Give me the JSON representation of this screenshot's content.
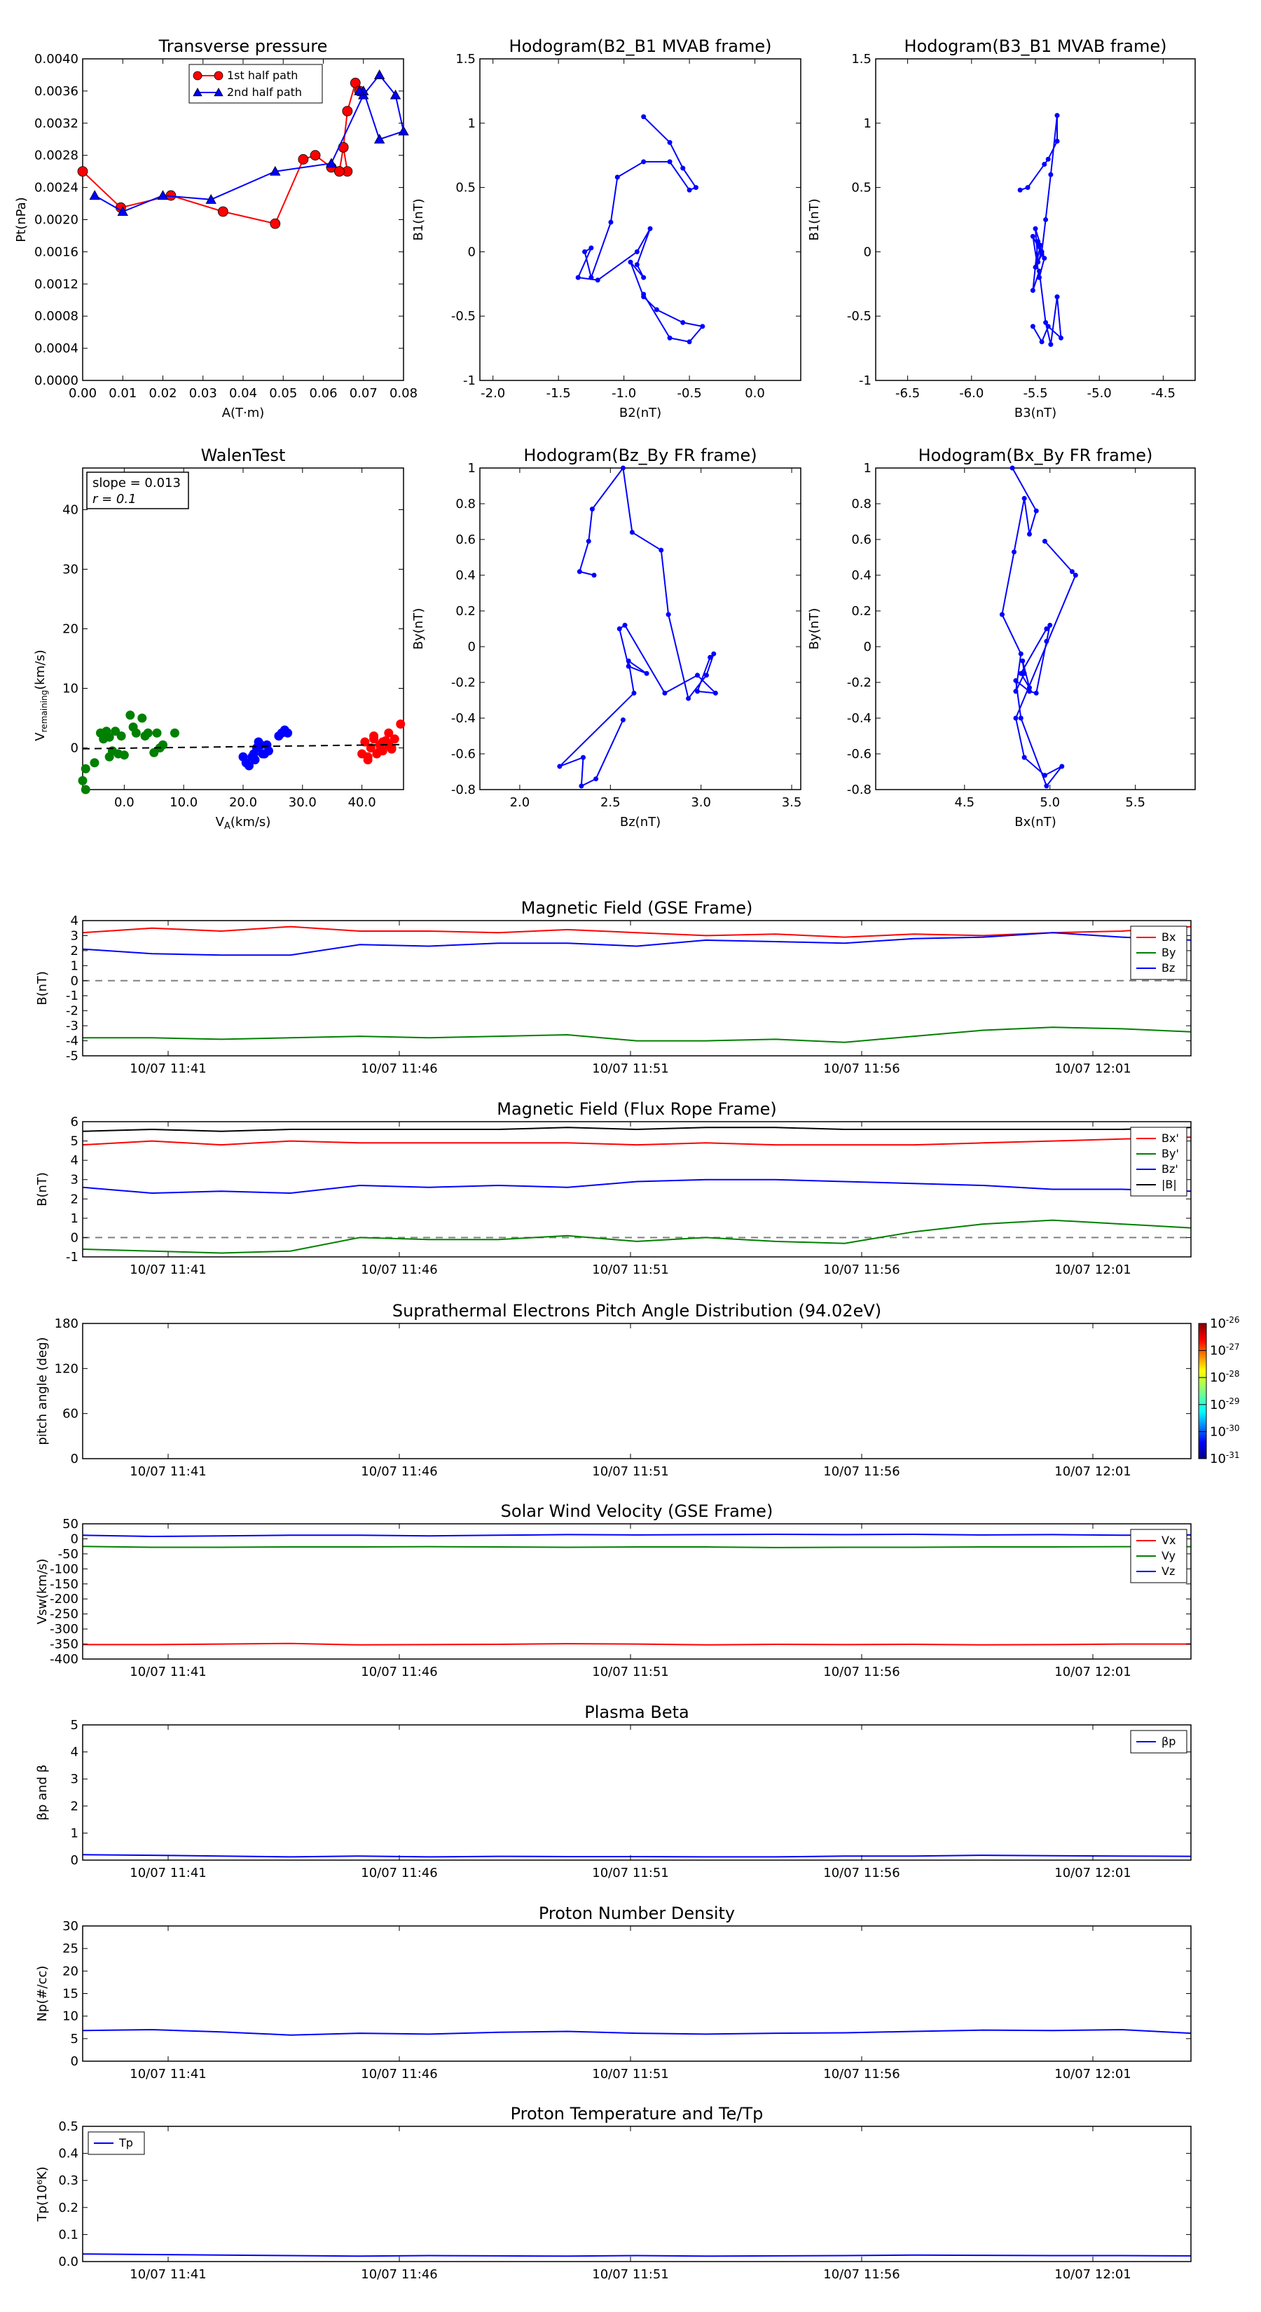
{
  "colors": {
    "red": "#ff0000",
    "green": "#008000",
    "blue": "#0000ff",
    "black": "#000000",
    "grey": "#808080"
  },
  "time_ticks": [
    "10/07 11:41",
    "10/07 11:46",
    "10/07 11:51",
    "10/07 11:56",
    "10/07 12:01"
  ],
  "chart_data": [
    {
      "type": "line",
      "title": "Transverse pressure",
      "xlabel": "A(T·m)",
      "ylabel": "Pt(nPa)",
      "xlim": [
        0,
        0.08
      ],
      "ylim": [
        0,
        0.004
      ],
      "xticks": [
        "0.00",
        "0.01",
        "0.02",
        "0.03",
        "0.04",
        "0.05",
        "0.06",
        "0.07",
        "0.08"
      ],
      "yticks": [
        "0.0000",
        "0.0004",
        "0.0008",
        "0.0012",
        "0.0016",
        "0.0020",
        "0.0024",
        "0.0028",
        "0.0032",
        "0.0036",
        "0.0040"
      ],
      "legend": {
        "position": "top-center",
        "entries": [
          "1st half path",
          "2nd half path"
        ]
      },
      "series": [
        {
          "name": "1st half path",
          "color": "#ff0000",
          "marker": "circle",
          "x": [
            0.0,
            0.0095,
            0.022,
            0.035,
            0.048,
            0.055,
            0.058,
            0.062,
            0.064,
            0.066,
            0.065,
            0.064,
            0.065,
            0.066,
            0.068,
            0.069
          ],
          "y": [
            0.0026,
            0.00215,
            0.0023,
            0.0021,
            0.00195,
            0.00275,
            0.0028,
            0.00265,
            0.0026,
            0.0026,
            0.0029,
            0.0026,
            0.0029,
            0.00335,
            0.0037,
            0.0036
          ]
        },
        {
          "name": "2nd half path",
          "color": "#0000ff",
          "marker": "triangle",
          "x": [
            0.003,
            0.01,
            0.02,
            0.032,
            0.048,
            0.062,
            0.07,
            0.074,
            0.078,
            0.08,
            0.074,
            0.07,
            0.069
          ],
          "y": [
            0.0023,
            0.0021,
            0.0023,
            0.00225,
            0.0026,
            0.0027,
            0.00355,
            0.0038,
            0.00355,
            0.0031,
            0.003,
            0.0036,
            0.0036
          ]
        }
      ]
    },
    {
      "type": "line",
      "title": "Hodogram(B2_B1 MVAB frame)",
      "xlabel": "B2(nT)",
      "ylabel": "B1(nT)",
      "xlim": [
        -2.1,
        0.35
      ],
      "ylim": [
        -1.0,
        1.5
      ],
      "xticks": [
        -2.0,
        -1.5,
        -1.0,
        -0.5,
        0.0
      ],
      "yticks": [
        -1.0,
        -0.5,
        0.0,
        0.5,
        1.0,
        1.5
      ],
      "series": [
        {
          "color": "#0000ff",
          "x": [
            -0.85,
            -0.65,
            -0.55,
            -0.45,
            -0.5,
            -0.65,
            -0.85,
            -1.05,
            -1.1,
            -1.25,
            -1.3,
            -1.25,
            -1.35,
            -1.2,
            -0.9,
            -0.8,
            -0.9,
            -0.85,
            -0.95,
            -0.85,
            -0.75,
            -0.55,
            -0.4,
            -0.5,
            -0.65,
            -0.85
          ],
          "y": [
            1.05,
            0.85,
            0.65,
            0.5,
            0.48,
            0.7,
            0.7,
            0.58,
            0.23,
            -0.2,
            0.0,
            0.03,
            -0.2,
            -0.22,
            0.0,
            0.18,
            -0.1,
            -0.2,
            -0.08,
            -0.35,
            -0.45,
            -0.55,
            -0.58,
            -0.7,
            -0.67,
            -0.33
          ]
        }
      ]
    },
    {
      "type": "line",
      "title": "Hodogram(B3_B1 MVAB frame)",
      "xlabel": "B3(nT)",
      "ylabel": "B1(nT)",
      "xlim": [
        -6.75,
        -4.25
      ],
      "ylim": [
        -1.0,
        1.5
      ],
      "xticks": [
        -6.5,
        -6.0,
        -5.5,
        -5.0,
        -4.5
      ],
      "yticks": [
        -1.0,
        -0.5,
        0.0,
        0.5,
        1.0,
        1.5
      ],
      "series": [
        {
          "color": "#0000ff",
          "x": [
            -5.62,
            -5.56,
            -5.43,
            -5.4,
            -5.33,
            -5.33,
            -5.38,
            -5.42,
            -5.45,
            -5.48,
            -5.5,
            -5.46,
            -5.5,
            -5.45,
            -5.52,
            -5.47,
            -5.43,
            -5.48,
            -5.52,
            -5.47,
            -5.42,
            -5.38,
            -5.33,
            -5.3,
            -5.4,
            -5.45,
            -5.52
          ],
          "y": [
            0.48,
            0.5,
            0.68,
            0.72,
            0.86,
            1.06,
            0.6,
            0.25,
            0.0,
            -0.08,
            0.18,
            0.05,
            -0.12,
            -0.02,
            0.12,
            -0.2,
            -0.05,
            0.08,
            -0.3,
            -0.15,
            -0.55,
            -0.72,
            -0.35,
            -0.67,
            -0.58,
            -0.7,
            -0.58
          ]
        }
      ]
    },
    {
      "type": "scatter",
      "title": "WalenTest",
      "xlabel": "V",
      "xlabel_sub": "A",
      "xlabel_tail": "(km/s)",
      "ylabel": "V",
      "ylabel_sub": "remaining",
      "ylabel_tail": "(km/s)",
      "xlim": [
        -7,
        47
      ],
      "ylim": [
        -7,
        47
      ],
      "xticks": [
        0,
        10,
        20,
        30,
        40
      ],
      "yticks": [
        0,
        10,
        20,
        30,
        40
      ],
      "annotation": [
        "slope = 0.013",
        "r = 0.1"
      ],
      "fit_line": {
        "slope": 0.013,
        "intercept": -0.05
      },
      "series": [
        {
          "color": "#008000",
          "x": [
            -7,
            -6.5,
            -5,
            -4,
            -3.5,
            -3,
            -2.5,
            -2,
            -1.5,
            -1,
            -0.5,
            0,
            1,
            1.5,
            2,
            3,
            3.5,
            4,
            5,
            5.5,
            6,
            6.5,
            8.5,
            -2.5,
            -6.5
          ],
          "y": [
            -5.5,
            -3.5,
            -2.5,
            2.5,
            1.5,
            2.8,
            1.8,
            -0.5,
            2.8,
            -1,
            2,
            -1.2,
            5.5,
            3.5,
            2.5,
            5,
            2,
            2.5,
            -0.8,
            2.5,
            0,
            0.5,
            2.5,
            -1.5,
            -7
          ]
        },
        {
          "color": "#0000ff",
          "x": [
            20,
            20.5,
            21,
            21.5,
            21.8,
            22,
            22.3,
            22.6,
            23,
            23.3,
            23.6,
            24,
            24.3,
            26,
            26.5,
            27,
            27.5
          ],
          "y": [
            -1.5,
            -2.5,
            -3,
            -1.5,
            -1,
            -2,
            0,
            1,
            0.5,
            -1,
            -1,
            0.5,
            -0.5,
            2,
            2.5,
            3,
            2.5
          ]
        },
        {
          "color": "#ff0000",
          "x": [
            40,
            40.5,
            41,
            41.5,
            42,
            42.5,
            43,
            43.5,
            44,
            44.5,
            45,
            42,
            43.5,
            44.5,
            45.5,
            46.5,
            41,
            43,
            44,
            45
          ],
          "y": [
            -1,
            1,
            -2,
            0,
            1.5,
            -1,
            0.5,
            -0.5,
            1,
            2.5,
            0,
            2,
            1,
            0.5,
            1.5,
            4,
            -1.5,
            -0.5,
            1.2,
            -0.2
          ]
        }
      ]
    },
    {
      "type": "line",
      "title": "Hodogram(Bz_By FR frame)",
      "xlabel": "Bz(nT)",
      "ylabel": "By(nT)",
      "xlim": [
        1.78,
        3.55
      ],
      "ylim": [
        -0.8,
        1.0
      ],
      "xticks": [
        2.0,
        2.5,
        3.0,
        3.5
      ],
      "yticks": [
        -0.8,
        -0.6,
        -0.4,
        -0.2,
        0.0,
        0.2,
        0.4,
        0.6,
        0.8,
        1.0
      ],
      "series": [
        {
          "color": "#0000ff",
          "x": [
            2.41,
            2.33,
            2.38,
            2.4,
            2.57,
            2.62,
            2.78,
            2.82,
            2.93,
            3.03,
            3.07,
            3.05,
            2.98,
            3.08,
            2.98,
            2.8,
            2.58,
            2.55,
            2.6,
            2.7,
            2.6,
            2.63,
            2.22,
            2.35,
            2.34,
            2.42,
            2.57
          ],
          "y": [
            0.4,
            0.42,
            0.59,
            0.77,
            1.0,
            0.64,
            0.54,
            0.18,
            -0.29,
            -0.16,
            -0.04,
            -0.06,
            -0.25,
            -0.26,
            -0.16,
            -0.26,
            0.12,
            0.1,
            -0.11,
            -0.15,
            -0.08,
            -0.26,
            -0.67,
            -0.62,
            -0.78,
            -0.74,
            -0.41
          ]
        }
      ]
    },
    {
      "type": "line",
      "title": "Hodogram(Bx_By FR frame)",
      "xlabel": "Bx(nT)",
      "ylabel": "By(nT)",
      "xlim": [
        3.98,
        5.85
      ],
      "ylim": [
        -0.8,
        1.0
      ],
      "xticks": [
        4.5,
        5.0,
        5.5
      ],
      "yticks": [
        -0.8,
        -0.6,
        -0.4,
        -0.2,
        0.0,
        0.2,
        0.4,
        0.6,
        0.8,
        1.0
      ],
      "series": [
        {
          "color": "#0000ff",
          "x": [
            4.78,
            4.92,
            4.88,
            4.85,
            4.79,
            4.72,
            4.83,
            4.8,
            4.85,
            4.84,
            4.88,
            4.83,
            4.98,
            5.0,
            4.98,
            4.92,
            4.88,
            4.8,
            4.83,
            4.98,
            5.07,
            4.97,
            4.85,
            4.8,
            5.15,
            5.13,
            4.97
          ],
          "y": [
            1.0,
            0.76,
            0.63,
            0.83,
            0.53,
            0.18,
            -0.04,
            -0.25,
            -0.15,
            -0.08,
            -0.23,
            -0.15,
            0.1,
            0.12,
            0.03,
            -0.26,
            -0.25,
            -0.19,
            -0.4,
            -0.78,
            -0.67,
            -0.72,
            -0.62,
            -0.4,
            0.4,
            0.42,
            0.59
          ]
        }
      ]
    },
    {
      "type": "line",
      "title": "Magnetic Field (GSE Frame)",
      "ylabel": "B(nT)",
      "ylim": [
        -5,
        4
      ],
      "yticks": [
        -5,
        -4,
        -3,
        -2,
        -1,
        0,
        1,
        2,
        3,
        4
      ],
      "zero_line": true,
      "legend": {
        "position": "top-right"
      },
      "series": [
        {
          "name": "Bx",
          "color": "#ff0000",
          "values": [
            3.2,
            3.5,
            3.3,
            3.6,
            3.3,
            3.3,
            3.2,
            3.4,
            3.2,
            3.0,
            3.1,
            2.9,
            3.1,
            3.0,
            3.2,
            3.3,
            3.6
          ]
        },
        {
          "name": "By",
          "color": "#008000",
          "values": [
            -3.8,
            -3.8,
            -3.9,
            -3.8,
            -3.7,
            -3.8,
            -3.7,
            -3.6,
            -4.0,
            -4.0,
            -3.9,
            -4.1,
            -3.7,
            -3.3,
            -3.1,
            -3.2,
            -3.4
          ]
        },
        {
          "name": "Bz",
          "color": "#0000ff",
          "values": [
            2.1,
            1.8,
            1.7,
            1.7,
            2.4,
            2.3,
            2.5,
            2.5,
            2.3,
            2.7,
            2.6,
            2.5,
            2.8,
            2.9,
            3.2,
            2.9,
            2.7
          ]
        }
      ]
    },
    {
      "type": "line",
      "title": "Magnetic Field (Flux Rope Frame)",
      "ylabel": "B(nT)",
      "ylim": [
        -1,
        6
      ],
      "yticks": [
        -1,
        0,
        1,
        2,
        3,
        4,
        5,
        6
      ],
      "zero_line": true,
      "legend": {
        "position": "top-right"
      },
      "series": [
        {
          "name": "Bx'",
          "color": "#ff0000",
          "values": [
            4.8,
            5.0,
            4.8,
            5.0,
            4.9,
            4.9,
            4.9,
            4.9,
            4.8,
            4.9,
            4.8,
            4.8,
            4.8,
            4.9,
            5.0,
            5.1,
            5.2
          ]
        },
        {
          "name": "By'",
          "color": "#008000",
          "values": [
            -0.6,
            -0.7,
            -0.8,
            -0.7,
            0.0,
            -0.1,
            -0.1,
            0.1,
            -0.2,
            0.0,
            -0.2,
            -0.3,
            0.3,
            0.7,
            0.9,
            0.7,
            0.5
          ]
        },
        {
          "name": "Bz'",
          "color": "#0000ff",
          "values": [
            2.6,
            2.3,
            2.4,
            2.3,
            2.7,
            2.6,
            2.7,
            2.6,
            2.9,
            3.0,
            3.0,
            2.9,
            2.8,
            2.7,
            2.5,
            2.5,
            2.4
          ]
        },
        {
          "name": "|B|",
          "color": "#000000",
          "values": [
            5.5,
            5.6,
            5.5,
            5.6,
            5.6,
            5.6,
            5.6,
            5.7,
            5.6,
            5.7,
            5.7,
            5.6,
            5.6,
            5.6,
            5.6,
            5.6,
            5.7
          ]
        }
      ]
    },
    {
      "type": "heatmap",
      "title": "Suprathermal Electrons Pitch Angle Distribution (94.02eV)",
      "ylabel": "pitch angle (deg)",
      "ylim": [
        0,
        180
      ],
      "yticks": [
        0,
        60,
        120,
        180
      ],
      "colorbar_ticks": [
        "-26",
        "-27",
        "-28",
        "-29",
        "-30",
        "-31"
      ],
      "colorbar_base": "10",
      "series": []
    },
    {
      "type": "line",
      "title": "Solar Wind Velocity (GSE Frame)",
      "ylabel": "Vsw(km/s)",
      "ylim": [
        -400,
        50
      ],
      "yticks": [
        -400,
        -350,
        -300,
        -250,
        -200,
        -150,
        -100,
        -50,
        0,
        50
      ],
      "legend": {
        "position": "top-right"
      },
      "series": [
        {
          "name": "Vx",
          "color": "#ff0000",
          "values": [
            -352,
            -352,
            -350,
            -348,
            -353,
            -352,
            -351,
            -349,
            -350,
            -353,
            -351,
            -352,
            -351,
            -353,
            -352,
            -350,
            -350
          ]
        },
        {
          "name": "Vy",
          "color": "#008000",
          "values": [
            -25,
            -28,
            -28,
            -27,
            -27,
            -26,
            -27,
            -28,
            -27,
            -27,
            -29,
            -28,
            -28,
            -27,
            -27,
            -26,
            -26
          ]
        },
        {
          "name": "Vz",
          "color": "#0000ff",
          "values": [
            12,
            8,
            10,
            12,
            12,
            10,
            12,
            14,
            13,
            14,
            15,
            14,
            15,
            13,
            14,
            12,
            13
          ]
        }
      ]
    },
    {
      "type": "line",
      "title": "Plasma Beta",
      "ylabel": "βp and β",
      "ylim": [
        0,
        5
      ],
      "yticks": [
        0,
        1,
        2,
        3,
        4,
        5
      ],
      "legend": {
        "position": "top-right"
      },
      "series": [
        {
          "name": "βp",
          "color": "#0000ff",
          "values": [
            0.2,
            0.18,
            0.15,
            0.12,
            0.15,
            0.12,
            0.14,
            0.13,
            0.13,
            0.12,
            0.12,
            0.15,
            0.15,
            0.18,
            0.16,
            0.15,
            0.14
          ]
        }
      ]
    },
    {
      "type": "line",
      "title": "Proton Number Density",
      "ylabel": "Np(#/cc)",
      "ylim": [
        0,
        30
      ],
      "yticks": [
        0,
        5,
        10,
        15,
        20,
        25,
        30
      ],
      "series": [
        {
          "color": "#0000ff",
          "values": [
            6.8,
            7.0,
            6.5,
            5.8,
            6.2,
            6.0,
            6.4,
            6.6,
            6.2,
            6.0,
            6.2,
            6.3,
            6.6,
            6.9,
            6.8,
            7.0,
            6.2
          ]
        }
      ]
    },
    {
      "type": "line",
      "title": "Proton Temperature and Te/Tp",
      "ylabel": "Tp(10⁶K)",
      "ylim": [
        0,
        0.5
      ],
      "yticks": [
        "0.0",
        "0.1",
        "0.2",
        "0.3",
        "0.4",
        "0.5"
      ],
      "legend": {
        "position": "top-left"
      },
      "series": [
        {
          "name": "Tp",
          "color": "#0000ff",
          "values": [
            0.028,
            0.026,
            0.024,
            0.022,
            0.02,
            0.022,
            0.021,
            0.02,
            0.022,
            0.02,
            0.021,
            0.022,
            0.024,
            0.023,
            0.022,
            0.022,
            0.021
          ]
        }
      ]
    }
  ]
}
